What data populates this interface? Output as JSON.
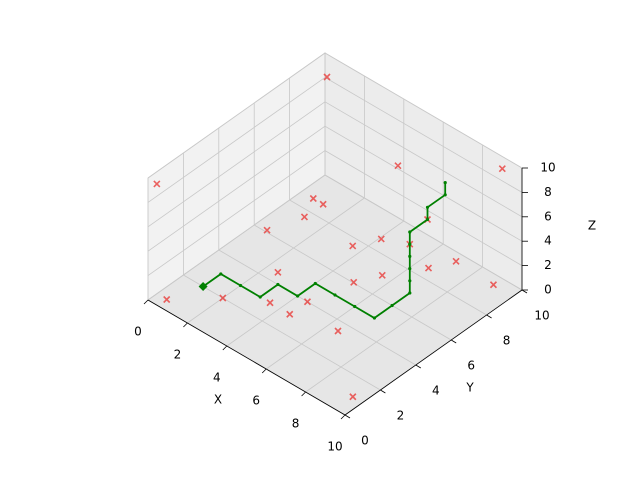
{
  "chart_data": {
    "type": "scatter3d",
    "xlabel": "X",
    "ylabel": "Y",
    "zlabel": "Z",
    "xlim": [
      0,
      10
    ],
    "ylim": [
      0,
      10
    ],
    "zlim": [
      0,
      10
    ],
    "xticks": [
      0,
      2,
      4,
      6,
      8,
      10
    ],
    "yticks": [
      0,
      2,
      4,
      6,
      8,
      10
    ],
    "zticks": [
      0,
      2,
      4,
      6,
      8,
      10
    ],
    "grid": true,
    "obstacles": {
      "marker": "x",
      "color": "#e8312f",
      "x": [
        1,
        0,
        5.5,
        9,
        3,
        3,
        3.5,
        2,
        7,
        6,
        5,
        7,
        3,
        5.5,
        6.5,
        7.5,
        8,
        9,
        0.5,
        2,
        3.5,
        4.5,
        4.5,
        6.5,
        9.5
      ],
      "y": [
        9,
        0.5,
        8,
        10,
        5.5,
        6,
        6,
        4.5,
        8,
        6.5,
        6,
        7,
        4,
        5.5,
        6,
        7.5,
        8.5,
        9.5,
        0.5,
        2,
        3,
        3,
        4,
        3.5,
        1
      ],
      "z": [
        10,
        9,
        8,
        9,
        4,
        5,
        5,
        3,
        5,
        4,
        3,
        4,
        1,
        1,
        2,
        2,
        2,
        0,
        0,
        0,
        0,
        0,
        0,
        0,
        0
      ]
    },
    "path": {
      "color": "#008000",
      "x": [
        1,
        1,
        2,
        3,
        3,
        4,
        4,
        5,
        6,
        7,
        7,
        7,
        7,
        7,
        7,
        7,
        7,
        7,
        7,
        7,
        7
      ],
      "y": [
        2,
        3,
        3,
        3,
        4,
        4,
        5,
        5,
        5,
        5,
        6,
        7,
        7,
        7,
        7,
        7,
        7,
        8,
        8,
        9,
        9
      ],
      "z": [
        0,
        0,
        0,
        0,
        0,
        0,
        0,
        0,
        0,
        0,
        0,
        0,
        1,
        2,
        3,
        4,
        5,
        5,
        6,
        6,
        7
      ]
    }
  }
}
